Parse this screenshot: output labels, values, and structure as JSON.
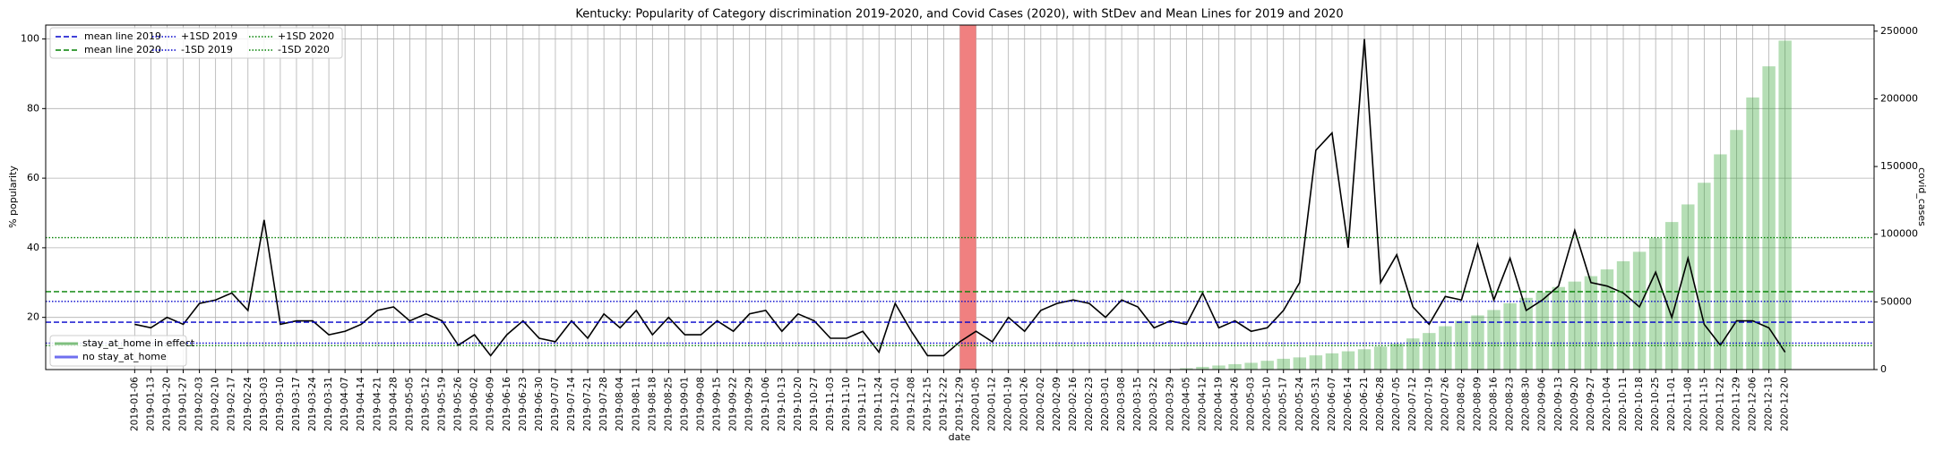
{
  "chart_data": {
    "type": "combo",
    "title": "Kentucky: Popularity of Category discrimination 2019-2020, and Covid Cases (2020), with StDev and Mean Lines for 2019 and 2020",
    "xlabel": "date",
    "ylabel": "% popularity",
    "y2label": "covid_cases",
    "categories": [
      "2019-01-06",
      "2019-01-13",
      "2019-01-20",
      "2019-01-27",
      "2019-02-03",
      "2019-02-10",
      "2019-02-17",
      "2019-02-24",
      "2019-03-03",
      "2019-03-10",
      "2019-03-17",
      "2019-03-24",
      "2019-03-31",
      "2019-04-07",
      "2019-04-14",
      "2019-04-21",
      "2019-04-28",
      "2019-05-05",
      "2019-05-12",
      "2019-05-19",
      "2019-05-26",
      "2019-06-02",
      "2019-06-09",
      "2019-06-16",
      "2019-06-23",
      "2019-06-30",
      "2019-07-07",
      "2019-07-14",
      "2019-07-21",
      "2019-07-28",
      "2019-08-04",
      "2019-08-11",
      "2019-08-18",
      "2019-08-25",
      "2019-09-01",
      "2019-09-08",
      "2019-09-15",
      "2019-09-22",
      "2019-09-29",
      "2019-10-06",
      "2019-10-13",
      "2019-10-20",
      "2019-10-27",
      "2019-11-03",
      "2019-11-10",
      "2019-11-17",
      "2019-11-24",
      "2019-12-01",
      "2019-12-08",
      "2019-12-15",
      "2019-12-22",
      "2019-12-29",
      "2020-01-05",
      "2020-01-12",
      "2020-01-19",
      "2020-01-26",
      "2020-02-02",
      "2020-02-09",
      "2020-02-16",
      "2020-02-23",
      "2020-03-01",
      "2020-03-08",
      "2020-03-15",
      "2020-03-22",
      "2020-03-29",
      "2020-04-05",
      "2020-04-12",
      "2020-04-19",
      "2020-04-26",
      "2020-05-03",
      "2020-05-10",
      "2020-05-17",
      "2020-05-24",
      "2020-05-31",
      "2020-06-07",
      "2020-06-14",
      "2020-06-21",
      "2020-06-28",
      "2020-07-05",
      "2020-07-12",
      "2020-07-19",
      "2020-07-26",
      "2020-08-02",
      "2020-08-09",
      "2020-08-16",
      "2020-08-23",
      "2020-08-30",
      "2020-09-06",
      "2020-09-13",
      "2020-09-20",
      "2020-09-27",
      "2020-10-04",
      "2020-10-11",
      "2020-10-18",
      "2020-10-25",
      "2020-11-01",
      "2020-11-08",
      "2020-11-15",
      "2020-11-22",
      "2020-11-29",
      "2020-12-06",
      "2020-12-13",
      "2020-12-20"
    ],
    "series": [
      {
        "type": "bar",
        "axis": "y2",
        "color": "#2ca02c",
        "values": [
          null,
          null,
          null,
          null,
          null,
          null,
          null,
          null,
          null,
          null,
          null,
          null,
          null,
          null,
          null,
          null,
          null,
          null,
          null,
          null,
          null,
          null,
          null,
          null,
          null,
          null,
          null,
          null,
          null,
          null,
          null,
          null,
          null,
          null,
          null,
          null,
          null,
          null,
          null,
          null,
          null,
          null,
          null,
          null,
          null,
          null,
          null,
          null,
          null,
          null,
          null,
          null,
          null,
          null,
          null,
          null,
          null,
          null,
          null,
          null,
          null,
          null,
          null,
          null,
          null,
          1000,
          2000,
          3000,
          4000,
          5000,
          6500,
          8000,
          9000,
          10500,
          12000,
          13500,
          15000,
          17000,
          19000,
          23000,
          27000,
          32000,
          36000,
          40000,
          44000,
          49000,
          53000,
          57000,
          61000,
          65000,
          69000,
          74000,
          80000,
          87000,
          97000,
          109000,
          122000,
          138000,
          159000,
          177000,
          201000,
          224000,
          243000
        ]
      },
      {
        "type": "line",
        "color": "#000000",
        "values": [
          18,
          17,
          20,
          18,
          24,
          25,
          27,
          22,
          48,
          18,
          19,
          19,
          15,
          16,
          18,
          22,
          23,
          19,
          21,
          19,
          12,
          15,
          9,
          15,
          19,
          14,
          13,
          19,
          14,
          21,
          17,
          22,
          15,
          20,
          15,
          15,
          19,
          16,
          21,
          22,
          16,
          21,
          19,
          14,
          14,
          16,
          10,
          24,
          16,
          9,
          9,
          13,
          16,
          13,
          20,
          16,
          22,
          24,
          25,
          24,
          20,
          25,
          23,
          17,
          19,
          18,
          27,
          17,
          19,
          16,
          17,
          22,
          30,
          68,
          73,
          40,
          100,
          30,
          38,
          23,
          18,
          26,
          25,
          41,
          25,
          37,
          22,
          25,
          29,
          45,
          30,
          29,
          27,
          23,
          33,
          20,
          37,
          18,
          12,
          19,
          19,
          17,
          10
        ]
      }
    ],
    "hlines": [
      {
        "name": "mean line 2019",
        "value": 18.6,
        "color": "#0000cc",
        "dash": "6,3"
      },
      {
        "name": "mean line 2020",
        "value": 27.4,
        "color": "#008000",
        "dash": "6,3"
      },
      {
        "name": "+1SD 2019",
        "value": 24.6,
        "color": "#0000cc",
        "dash": "1.5,2"
      },
      {
        "name": "-1SD 2019",
        "value": 12.6,
        "color": "#0000cc",
        "dash": "1.5,2"
      },
      {
        "name": "+1SD 2020",
        "value": 42.9,
        "color": "#008000",
        "dash": "1.5,2"
      },
      {
        "name": "-1SD 2020",
        "value": 11.9,
        "color": "#008000",
        "dash": "1.5,2"
      }
    ],
    "span": {
      "from": "2019-12-29",
      "to": "2020-01-05",
      "color": "#f08080"
    },
    "legend2": [
      {
        "name": "stay_at_home in effect",
        "color": "#7fbf7f"
      },
      {
        "name": "no stay_at_home",
        "color": "#6f6fef"
      }
    ],
    "ylim": [
      5,
      104
    ],
    "yticks": [
      20,
      40,
      60,
      80,
      100
    ],
    "y2lim": [
      0,
      254500
    ],
    "y2ticks": [
      0,
      50000,
      100000,
      150000,
      200000,
      250000
    ],
    "grid": true
  }
}
